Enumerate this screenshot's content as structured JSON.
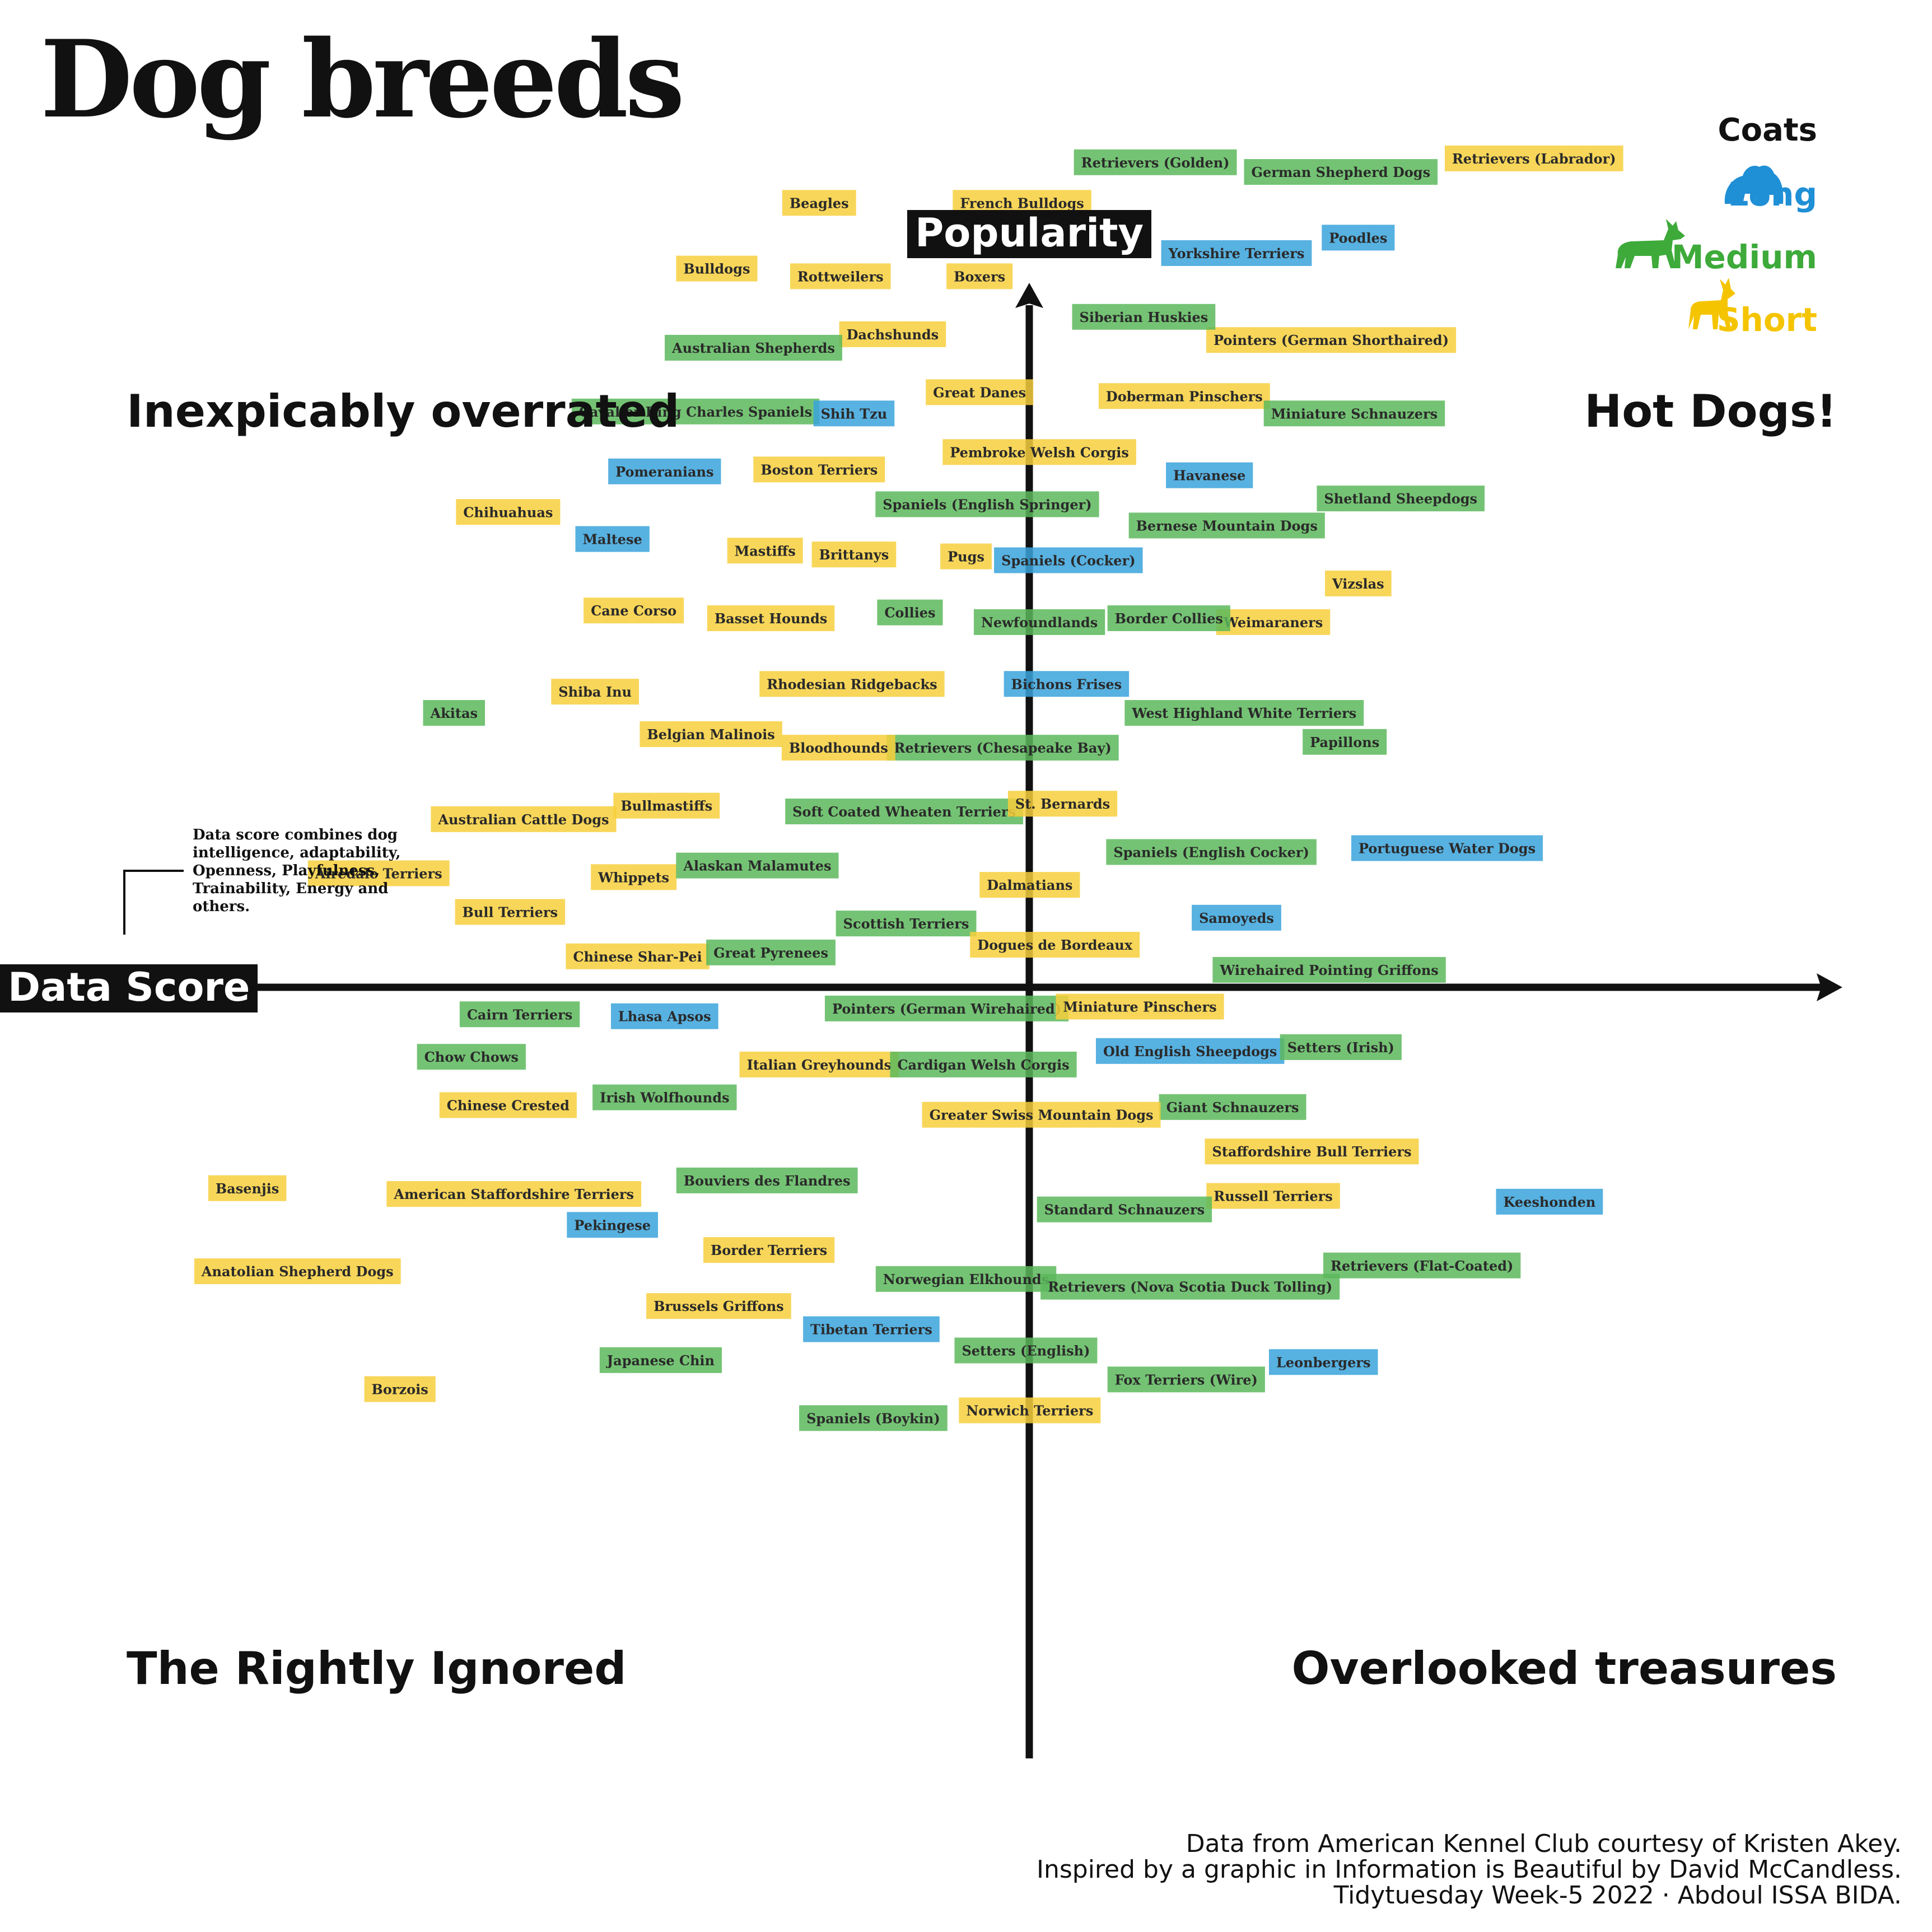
{
  "title": "Dog breeds",
  "quadrants": {
    "top_left": "Inexpicably overrated",
    "top_right": "Hot Dogs!",
    "bottom_left": "The Rightly Ignored",
    "bottom_right": "Overlooked treasures"
  },
  "note": "Data score combines dog intelligence, adaptability, Openness, Playfulness, Trainability, Energy and others.",
  "legend": {
    "title": "Coats",
    "items": [
      {
        "label": "Long",
        "color": "#1f8fd6",
        "icon": "long-coat-dog-icon"
      },
      {
        "label": "Medium",
        "color": "#3daa3a",
        "icon": "medium-coat-dog-icon"
      },
      {
        "label": "Short",
        "color": "#f5c400",
        "icon": "short-coat-dog-icon"
      }
    ]
  },
  "credits": [
    "Data from American Kennel Club courtesy of Kristen Akey.",
    "Inspired by a graphic in Information is Beautiful by David McCandless.",
    "Tidytuesday Week-5 2022 · Abdoul ISSA BIDA."
  ],
  "chart_data": {
    "type": "scatter",
    "xlabel": "Data Score",
    "ylabel": "Popularity",
    "xlim": [
      0,
      100
    ],
    "ylim": [
      0,
      100
    ],
    "grid": false,
    "legend_position": "top-right",
    "coat_colors": {
      "Long": "#3aa3dc",
      "Medium": "#5cb85c",
      "Short": "#f7cf3c"
    },
    "points": [
      {
        "label": "Retrievers (Labrador)",
        "coat": "Short",
        "x": 79.4,
        "y": 91.8
      },
      {
        "label": "German Shepherd Dogs",
        "coat": "Medium",
        "x": 69.4,
        "y": 91.1
      },
      {
        "label": "Retrievers (Golden)",
        "coat": "Medium",
        "x": 59.8,
        "y": 91.6
      },
      {
        "label": "French Bulldogs",
        "coat": "Short",
        "x": 52.9,
        "y": 89.5
      },
      {
        "label": "Bulldogs",
        "coat": "Short",
        "x": 37.1,
        "y": 86.1
      },
      {
        "label": "Poodles",
        "coat": "Long",
        "x": 70.3,
        "y": 87.7
      },
      {
        "label": "Beagles",
        "coat": "Short",
        "x": 42.4,
        "y": 89.5
      },
      {
        "label": "Rottweilers",
        "coat": "Short",
        "x": 43.5,
        "y": 85.7
      },
      {
        "label": "Pointers (German Shorthaired)",
        "coat": "Short",
        "x": 68.9,
        "y": 82.4
      },
      {
        "label": "Dachshunds",
        "coat": "Short",
        "x": 46.2,
        "y": 82.7
      },
      {
        "label": "Pembroke Welsh Corgis",
        "coat": "Short",
        "x": 53.8,
        "y": 76.6
      },
      {
        "label": "Australian Shepherds",
        "coat": "Medium",
        "x": 39.0,
        "y": 82.0
      },
      {
        "label": "Yorkshire Terriers",
        "coat": "Long",
        "x": 64.0,
        "y": 86.9
      },
      {
        "label": "Boxers",
        "coat": "Short",
        "x": 50.7,
        "y": 85.7
      },
      {
        "label": "Great Danes",
        "coat": "Short",
        "x": 50.7,
        "y": 79.7
      },
      {
        "label": "Siberian Huskies",
        "coat": "Medium",
        "x": 59.2,
        "y": 83.6
      },
      {
        "label": "Cavalier King Charles Spaniels",
        "coat": "Medium",
        "x": 36.0,
        "y": 78.7
      },
      {
        "label": "Doberman Pinschers",
        "coat": "Short",
        "x": 61.3,
        "y": 79.5
      },
      {
        "label": "Miniature Schnauzers",
        "coat": "Medium",
        "x": 70.1,
        "y": 78.6
      },
      {
        "label": "Shih Tzu",
        "coat": "Long",
        "x": 44.2,
        "y": 78.6
      },
      {
        "label": "Boston Terriers",
        "coat": "Short",
        "x": 42.4,
        "y": 75.7
      },
      {
        "label": "Bernese Mountain Dogs",
        "coat": "Medium",
        "x": 63.5,
        "y": 72.8
      },
      {
        "label": "Pomeranians",
        "coat": "Long",
        "x": 34.4,
        "y": 75.6
      },
      {
        "label": "Havanese",
        "coat": "Long",
        "x": 62.6,
        "y": 75.4
      },
      {
        "label": "Spaniels (English Springer)",
        "coat": "Medium",
        "x": 51.1,
        "y": 73.9
      },
      {
        "label": "Shetland Sheepdogs",
        "coat": "Medium",
        "x": 72.5,
        "y": 74.2
      },
      {
        "label": "Brittanys",
        "coat": "Short",
        "x": 44.2,
        "y": 71.3
      },
      {
        "label": "Spaniels (Cocker)",
        "coat": "Long",
        "x": 55.3,
        "y": 71.0
      },
      {
        "label": "Mastiffs",
        "coat": "Short",
        "x": 39.6,
        "y": 71.5
      },
      {
        "label": "Chihuahuas",
        "coat": "Short",
        "x": 26.3,
        "y": 73.5
      },
      {
        "label": "Vizslas",
        "coat": "Short",
        "x": 70.3,
        "y": 69.8
      },
      {
        "label": "Pugs",
        "coat": "Short",
        "x": 50.0,
        "y": 71.2
      },
      {
        "label": "Maltese",
        "coat": "Long",
        "x": 31.7,
        "y": 72.1
      },
      {
        "label": "Weimaraners",
        "coat": "Short",
        "x": 65.9,
        "y": 67.8
      },
      {
        "label": "Collies",
        "coat": "Medium",
        "x": 47.1,
        "y": 68.3
      },
      {
        "label": "Newfoundlands",
        "coat": "Medium",
        "x": 53.8,
        "y": 67.8
      },
      {
        "label": "Border Collies",
        "coat": "Medium",
        "x": 60.5,
        "y": 68.0
      },
      {
        "label": "Basset Hounds",
        "coat": "Short",
        "x": 39.9,
        "y": 68.0
      },
      {
        "label": "Cane Corso",
        "coat": "Short",
        "x": 32.8,
        "y": 68.4
      },
      {
        "label": "Rhodesian Ridgebacks",
        "coat": "Short",
        "x": 44.1,
        "y": 64.6
      },
      {
        "label": "Bichons Frises",
        "coat": "Long",
        "x": 55.2,
        "y": 64.6
      },
      {
        "label": "West Highland White Terriers",
        "coat": "Medium",
        "x": 64.4,
        "y": 63.1
      },
      {
        "label": "Shiba Inu",
        "coat": "Short",
        "x": 30.8,
        "y": 64.2
      },
      {
        "label": "Akitas",
        "coat": "Medium",
        "x": 23.5,
        "y": 63.1
      },
      {
        "label": "Belgian Malinois",
        "coat": "Short",
        "x": 36.8,
        "y": 62.0
      },
      {
        "label": "Retrievers (Chesapeake Bay)",
        "coat": "Medium",
        "x": 51.9,
        "y": 61.3
      },
      {
        "label": "Bloodhounds",
        "coat": "Short",
        "x": 43.4,
        "y": 61.3
      },
      {
        "label": "Papillons",
        "coat": "Medium",
        "x": 69.6,
        "y": 61.6
      },
      {
        "label": "Bullmastiffs",
        "coat": "Short",
        "x": 34.5,
        "y": 58.3
      },
      {
        "label": "Soft Coated Wheaten Terriers",
        "coat": "Medium",
        "x": 46.8,
        "y": 58.0
      },
      {
        "label": "St. Bernards",
        "coat": "Short",
        "x": 55.0,
        "y": 58.4
      },
      {
        "label": "Australian Cattle Dogs",
        "coat": "Short",
        "x": 27.1,
        "y": 57.6
      },
      {
        "label": "Portuguese Water Dogs",
        "coat": "Long",
        "x": 74.9,
        "y": 56.1
      },
      {
        "label": "Spaniels (English Cocker)",
        "coat": "Medium",
        "x": 62.7,
        "y": 55.9
      },
      {
        "label": "Airedale Terriers",
        "coat": "Short",
        "x": 19.6,
        "y": 54.8
      },
      {
        "label": "Whippets",
        "coat": "Short",
        "x": 32.8,
        "y": 54.6
      },
      {
        "label": "Alaskan Malamutes",
        "coat": "Medium",
        "x": 39.2,
        "y": 55.2
      },
      {
        "label": "Dalmatians",
        "coat": "Short",
        "x": 53.3,
        "y": 54.2
      },
      {
        "label": "Samoyeds",
        "coat": "Long",
        "x": 64.0,
        "y": 52.5
      },
      {
        "label": "Bull Terriers",
        "coat": "Short",
        "x": 26.4,
        "y": 52.8
      },
      {
        "label": "Scottish Terriers",
        "coat": "Medium",
        "x": 46.9,
        "y": 52.2
      },
      {
        "label": "Chinese Shar-Pei",
        "coat": "Short",
        "x": 33.0,
        "y": 50.5
      },
      {
        "label": "Great Pyrenees",
        "coat": "Medium",
        "x": 39.9,
        "y": 50.7
      },
      {
        "label": "Dogues de Bordeaux",
        "coat": "Short",
        "x": 54.6,
        "y": 51.1
      },
      {
        "label": "Wirehaired Pointing Griffons",
        "coat": "Medium",
        "x": 68.8,
        "y": 49.8
      },
      {
        "label": "Cairn Terriers",
        "coat": "Medium",
        "x": 26.9,
        "y": 47.5
      },
      {
        "label": "Lhasa Apsos",
        "coat": "Long",
        "x": 34.4,
        "y": 47.4
      },
      {
        "label": "Pointers (German Wirehaired)",
        "coat": "Medium",
        "x": 49.0,
        "y": 47.8
      },
      {
        "label": "Miniature Pinschers",
        "coat": "Short",
        "x": 59.0,
        "y": 47.9
      },
      {
        "label": "Old English Sheepdogs",
        "coat": "Long",
        "x": 61.6,
        "y": 45.6
      },
      {
        "label": "Setters (Irish)",
        "coat": "Medium",
        "x": 69.4,
        "y": 45.8
      },
      {
        "label": "Chow Chows",
        "coat": "Medium",
        "x": 24.4,
        "y": 45.3
      },
      {
        "label": "Italian Greyhounds",
        "coat": "Short",
        "x": 42.4,
        "y": 44.9
      },
      {
        "label": "Cardigan Welsh Corgis",
        "coat": "Medium",
        "x": 50.9,
        "y": 44.9
      },
      {
        "label": "Irish Wolfhounds",
        "coat": "Medium",
        "x": 34.4,
        "y": 43.2
      },
      {
        "label": "Giant Schnauzers",
        "coat": "Medium",
        "x": 63.8,
        "y": 42.7
      },
      {
        "label": "Chinese Crested",
        "coat": "Short",
        "x": 26.3,
        "y": 42.8
      },
      {
        "label": "Greater Swiss Mountain Dogs",
        "coat": "Short",
        "x": 53.9,
        "y": 42.3
      },
      {
        "label": "Staffordshire Bull Terriers",
        "coat": "Short",
        "x": 67.9,
        "y": 40.4
      },
      {
        "label": "Bouviers des Flandres",
        "coat": "Medium",
        "x": 39.7,
        "y": 38.9
      },
      {
        "label": "Basenjis",
        "coat": "Short",
        "x": 12.8,
        "y": 38.5
      },
      {
        "label": "American Staffordshire Terriers",
        "coat": "Short",
        "x": 26.6,
        "y": 38.2
      },
      {
        "label": "Keeshonden",
        "coat": "Long",
        "x": 80.2,
        "y": 37.8
      },
      {
        "label": "Russell Terriers",
        "coat": "Short",
        "x": 65.9,
        "y": 38.1
      },
      {
        "label": "Standard Schnauzers",
        "coat": "Medium",
        "x": 58.2,
        "y": 37.4
      },
      {
        "label": "Pekingese",
        "coat": "Long",
        "x": 31.7,
        "y": 36.6
      },
      {
        "label": "Border Terriers",
        "coat": "Short",
        "x": 39.8,
        "y": 35.3
      },
      {
        "label": "Anatolian Shepherd Dogs",
        "coat": "Short",
        "x": 15.4,
        "y": 34.2
      },
      {
        "label": "Retrievers (Flat-Coated)",
        "coat": "Medium",
        "x": 73.6,
        "y": 34.5
      },
      {
        "label": "Norwegian Elkhounds",
        "coat": "Medium",
        "x": 50.0,
        "y": 33.8
      },
      {
        "label": "Retrievers (Nova Scotia Duck Tolling)",
        "coat": "Medium",
        "x": 61.6,
        "y": 33.4
      },
      {
        "label": "Brussels Griffons",
        "coat": "Short",
        "x": 37.2,
        "y": 32.4
      },
      {
        "label": "Tibetan Terriers",
        "coat": "Long",
        "x": 45.1,
        "y": 31.2
      },
      {
        "label": "Setters (English)",
        "coat": "Medium",
        "x": 53.1,
        "y": 30.1
      },
      {
        "label": "Japanese Chin",
        "coat": "Medium",
        "x": 34.2,
        "y": 29.6
      },
      {
        "label": "Leonbergers",
        "coat": "Long",
        "x": 68.5,
        "y": 29.5
      },
      {
        "label": "Fox Terriers (Wire)",
        "coat": "Medium",
        "x": 61.4,
        "y": 28.6
      },
      {
        "label": "Borzois",
        "coat": "Short",
        "x": 20.7,
        "y": 28.1
      },
      {
        "label": "Norwich Terriers",
        "coat": "Short",
        "x": 53.3,
        "y": 27.0
      },
      {
        "label": "Spaniels (Boykin)",
        "coat": "Medium",
        "x": 45.2,
        "y": 26.6
      }
    ]
  }
}
